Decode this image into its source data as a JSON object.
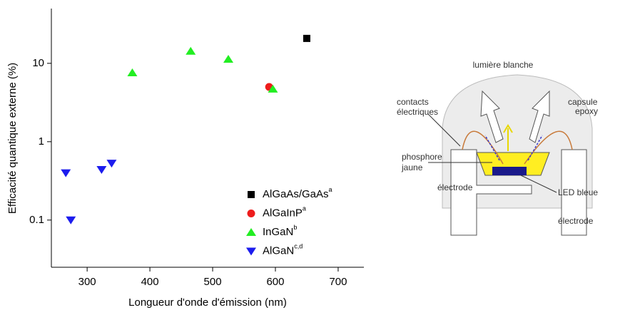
{
  "chart_data": {
    "type": "scatter",
    "x_label": "Longueur d'onde d'émission (nm)",
    "y_label": "Efficacité quantique externe (%)",
    "xlim": [
      243,
      741
    ],
    "xticks": [
      300,
      400,
      500,
      600,
      700
    ],
    "ylim": [
      0.025,
      50
    ],
    "yticks": [
      0.1,
      1,
      10
    ],
    "y_scale": "log",
    "legend": "lower right",
    "series": [
      {
        "name": "AlGaAs/GaAs",
        "note": "a",
        "marker": "square",
        "color": "#000000",
        "x": [
          650
        ],
        "values": [
          20.8
        ]
      },
      {
        "name": "AlGaInP",
        "note": "a",
        "marker": "circle",
        "color": "#ee1c1c",
        "x": [
          590
        ],
        "values": [
          5.0
        ]
      },
      {
        "name": "InGaN",
        "note": "b",
        "marker": "triangle-up",
        "color": "#22ee22",
        "x": [
          372,
          465,
          525,
          596
        ],
        "values": [
          7.6,
          14.3,
          11.3,
          4.7
        ]
      },
      {
        "name": "AlGaN",
        "note": "c,d",
        "marker": "triangle-down",
        "color": "#1c1cee",
        "x": [
          266,
          274,
          323,
          339
        ],
        "values": [
          0.4,
          0.1,
          0.44,
          0.53
        ]
      }
    ]
  },
  "diagram": {
    "labels": [
      "lumière blanche",
      "capsule",
      "epoxy",
      "contacts",
      "électriques",
      "phosphore",
      "jaune",
      "électrode",
      "LED bleue",
      "électrode"
    ]
  }
}
